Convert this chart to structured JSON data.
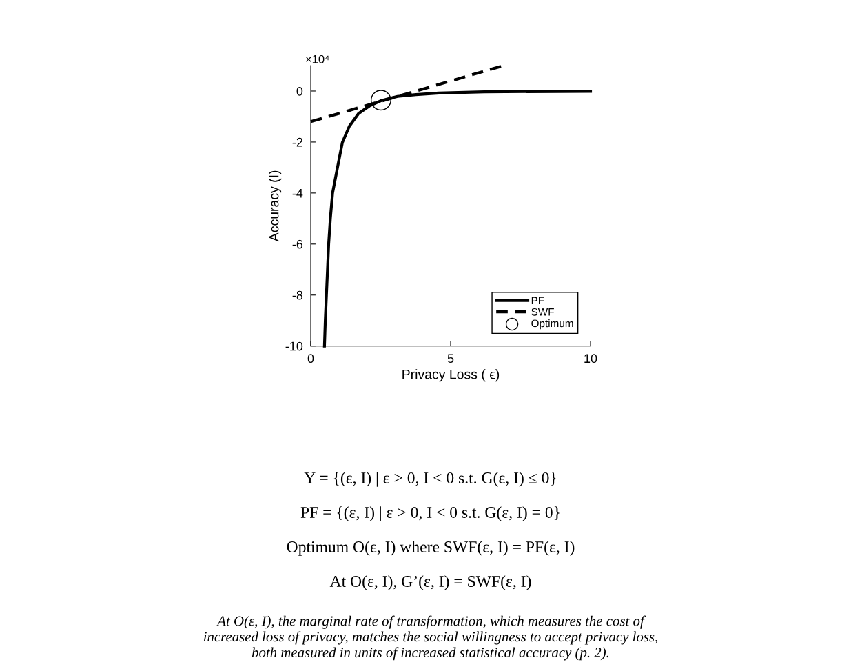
{
  "chart_data": {
    "type": "line",
    "xlabel": "Privacy Loss ( ϵ)",
    "ylabel": "Accuracy (I)",
    "xlim": [
      0,
      10
    ],
    "xticks": [
      0,
      5,
      10
    ],
    "ylim": [
      -10,
      1
    ],
    "yticks": [
      -10,
      -8,
      -6,
      -4,
      -2,
      0
    ],
    "grid": false,
    "legend": "bottom right",
    "series": [
      {
        "name": "PF",
        "line_style": "solid",
        "marker": "none",
        "color": "#000000",
        "x": [
          0.49,
          0.52,
          0.56,
          0.64,
          0.7,
          0.78,
          0.97,
          1.13,
          1.38,
          1.71,
          2.12,
          2.53,
          3.1,
          3.76,
          4.58,
          6.2,
          10
        ],
        "values": [
          -10,
          -9,
          -8,
          -6,
          -5,
          -4,
          -2.92,
          -2.02,
          -1.38,
          -0.88,
          -0.57,
          -0.37,
          -0.21,
          -0.14,
          -0.08,
          -0.03,
          -0.01
        ]
      },
      {
        "name": "SWF",
        "line_style": "dashed",
        "marker": "none",
        "color": "#000000",
        "x": [
          0,
          6.9
        ],
        "values": [
          -1.2,
          1.0
        ]
      },
      {
        "name": "Optimum",
        "type": "scatter",
        "marker": "circle",
        "color": "#000000",
        "x": [
          2.51
        ],
        "values": [
          -0.36
        ]
      }
    ],
    "annotations": [
      "×10⁴",
      "Y = {(ε, I) | ε > 0, I < 0 s.t. G(ε, I) ≤ 0}",
      "PF = {(ε, I) | ε > 0, I < 0 s.t. G(ε, I) = 0}",
      "Optimum O(ε, I) where SWF(ε, I) = PF(ε, I)",
      "At O(ε, I), G’(ε, I) = SWF(ε, I)",
      "At O(ε, I), the marginal rate of transformation, which measures the cost of\nincreased loss of privacy, matches the social willingness to accept privacy loss,\nboth measured in units of increased statistical accuracy (p. 2)."
    ]
  }
}
